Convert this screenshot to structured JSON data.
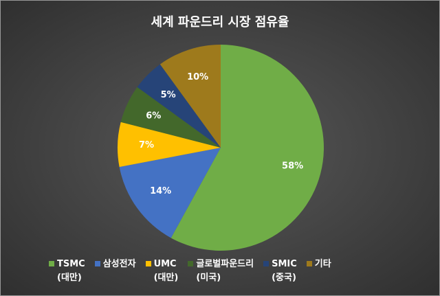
{
  "chart_data": {
    "type": "pie",
    "title": "세계 파운드리 시장 점유율",
    "categories": [
      "TSMC (대만)",
      "삼성전자",
      "UMC (대만)",
      "글로벌파운드리 (미국)",
      "SMIC (중국)",
      "기타"
    ],
    "values": [
      58,
      14,
      7,
      6,
      5,
      10
    ],
    "value_labels": [
      "58%",
      "14%",
      "7%",
      "6%",
      "5%",
      "10%"
    ],
    "colors": [
      "#70ad47",
      "#4472c4",
      "#ffc000",
      "#43682b",
      "#264478",
      "#9e7a1c"
    ],
    "legend": "bottom"
  }
}
